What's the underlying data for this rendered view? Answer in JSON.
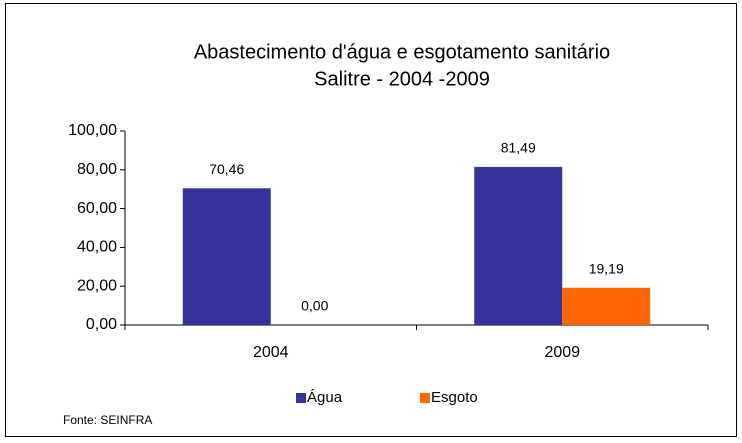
{
  "chart_data": {
    "type": "bar",
    "title": [
      "Abastecimento d'água e esgotamento sanitário",
      "Salitre - 2004 -2009"
    ],
    "categories": [
      "2004",
      "2009"
    ],
    "series": [
      {
        "name": "Água",
        "color": "#333399",
        "values": [
          70.46,
          81.49
        ],
        "value_labels": [
          "70,46",
          "81,49"
        ]
      },
      {
        "name": "Esgoto",
        "color": "#ff6600",
        "values": [
          0,
          19.19
        ],
        "value_labels": [
          "0,00",
          "19,19"
        ]
      }
    ],
    "ylim": [
      0,
      100
    ],
    "yticks": [
      {
        "value": 0,
        "label": "0,00"
      },
      {
        "value": 20,
        "label": "20,00"
      },
      {
        "value": 40,
        "label": "40,00"
      },
      {
        "value": 60,
        "label": "60,00"
      },
      {
        "value": 80,
        "label": "80,00"
      },
      {
        "value": 100,
        "label": "100,00"
      }
    ],
    "legend": "bottom",
    "source": "Fonte: SEINFRA"
  }
}
